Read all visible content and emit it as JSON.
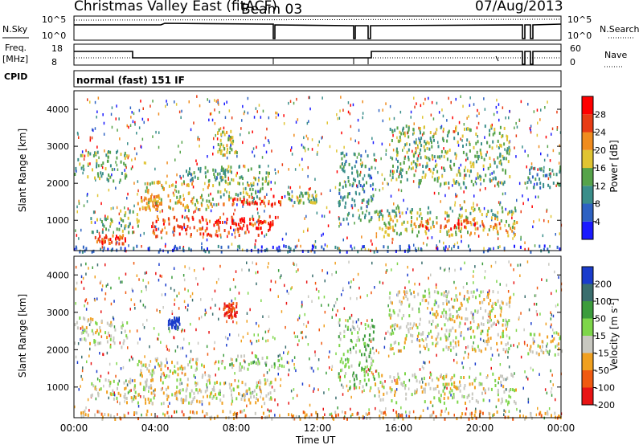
{
  "header": {
    "title": "Christmas Valley East (fitACF)",
    "beam": "Beam 03",
    "date": "07/Aug/2013"
  },
  "panels": {
    "nsky": {
      "left_label": "N.Sky",
      "right_label": "N.Search",
      "left_ticks": [
        "10^5",
        "10^0"
      ],
      "right_ticks": [
        "10^5",
        "10^0"
      ]
    },
    "freq": {
      "left_label_1": "Freq.",
      "left_label_2": "[MHz]",
      "right_label": "Nave",
      "left_ticks": [
        "18",
        "8"
      ],
      "right_ticks": [
        "60",
        "0"
      ]
    },
    "cpid": {
      "label": "CPID",
      "text": "normal (fast) 151 IF"
    }
  },
  "chart_data": [
    {
      "type": "heatmap",
      "name": "power",
      "ylabel": "Slant Range [km]",
      "xlabel": "Time UT",
      "x_unit": "hours UT",
      "xlim": [
        0,
        24
      ],
      "ylim": [
        180,
        4500
      ],
      "yticks": [
        1000,
        2000,
        3000,
        4000
      ],
      "colorbar": {
        "label": "Power [dB]",
        "ticks": [
          "4",
          "8",
          "12",
          "16",
          "20",
          "24",
          "28"
        ],
        "colors": [
          "#1a1aff",
          "#2e62c2",
          "#3a8e8a",
          "#56a34a",
          "#e0c432",
          "#f08c1e",
          "#e83c14",
          "#ff0000"
        ]
      },
      "bands": [
        {
          "t0": 0.0,
          "t1": 2.6,
          "r0": 2100,
          "r1": 2900,
          "level": 3
        },
        {
          "t0": 3.1,
          "t1": 4.3,
          "r0": 1300,
          "r1": 1700,
          "level": 5
        },
        {
          "t0": 3.5,
          "t1": 7.0,
          "r0": 1300,
          "r1": 2100,
          "level": 4
        },
        {
          "t0": 5.5,
          "t1": 7.5,
          "r0": 2100,
          "r1": 2500,
          "level": 2
        },
        {
          "t0": 7.0,
          "t1": 9.6,
          "r0": 1500,
          "r1": 2500,
          "level": 3
        },
        {
          "t0": 7.2,
          "t1": 10.3,
          "r0": 1450,
          "r1": 1700,
          "level": 6
        },
        {
          "t0": 7.0,
          "t1": 8.0,
          "r0": 2800,
          "r1": 3500,
          "level": 4
        },
        {
          "t0": 0.8,
          "t1": 3.2,
          "r0": 700,
          "r1": 1300,
          "level": 3
        },
        {
          "t0": 1.0,
          "t1": 2.5,
          "r0": 400,
          "r1": 650,
          "level": 6
        },
        {
          "t0": 3.8,
          "t1": 9.9,
          "r0": 600,
          "r1": 1150,
          "level": 6
        },
        {
          "t0": 6.2,
          "t1": 9.8,
          "r0": 800,
          "r1": 1100,
          "level": 7
        },
        {
          "t0": 10.5,
          "t1": 12.0,
          "r0": 1500,
          "r1": 1800,
          "level": 3
        },
        {
          "t0": 13.0,
          "t1": 14.8,
          "r0": 1000,
          "r1": 2900,
          "level": 2
        },
        {
          "t0": 14.8,
          "t1": 21.8,
          "r0": 1100,
          "r1": 1400,
          "level": 3
        },
        {
          "t0": 15.0,
          "t1": 21.8,
          "r0": 600,
          "r1": 1100,
          "level": 4
        },
        {
          "t0": 17.0,
          "t1": 21.0,
          "r0": 800,
          "r1": 1050,
          "level": 6
        },
        {
          "t0": 15.5,
          "t1": 21.5,
          "r0": 2000,
          "r1": 3600,
          "level": 3
        },
        {
          "t0": 22.3,
          "t1": 24.0,
          "r0": 1900,
          "r1": 2500,
          "level": 2
        },
        {
          "t0": 0.0,
          "t1": 24.0,
          "r0": 180,
          "r1": 350,
          "level": 1
        }
      ]
    },
    {
      "type": "heatmap",
      "name": "velocity",
      "ylabel": "Slant Range [km]",
      "xlabel": "Time UT",
      "x_unit": "hours UT",
      "xlim": [
        0,
        24
      ],
      "ylim": [
        180,
        4500
      ],
      "yticks": [
        1000,
        2000,
        3000,
        4000
      ],
      "xticks": [
        "00:00",
        "04:00",
        "08:00",
        "12:00",
        "16:00",
        "20:00",
        "00:00"
      ],
      "colorbar": {
        "label": "Velocity [m s^-1]",
        "ticks": [
          "200",
          "100",
          "50",
          "15",
          "-15",
          "-50",
          "-100",
          "-200"
        ],
        "colors": [
          "#1a3ccc",
          "#3a6e6e",
          "#3c9c3c",
          "#7ed64a",
          "#c8c8c0",
          "#f0a020",
          "#f05a10",
          "#e81414"
        ]
      },
      "bands": [
        {
          "t0": 0.0,
          "t1": 2.6,
          "r0": 2100,
          "r1": 2900,
          "level": 4
        },
        {
          "t0": 3.1,
          "t1": 7.0,
          "r0": 1300,
          "r1": 1800,
          "level": 4
        },
        {
          "t0": 7.0,
          "t1": 10.3,
          "r0": 1500,
          "r1": 1900,
          "level": 3
        },
        {
          "t0": 0.8,
          "t1": 9.9,
          "r0": 600,
          "r1": 1250,
          "level": 4
        },
        {
          "t0": 5.0,
          "t1": 9.0,
          "r0": 700,
          "r1": 1000,
          "level": 4
        },
        {
          "t0": 7.3,
          "t1": 8.0,
          "r0": 2900,
          "r1": 3300,
          "level": 7
        },
        {
          "t0": 4.6,
          "t1": 5.2,
          "r0": 2600,
          "r1": 2900,
          "level": 0
        },
        {
          "t0": 13.0,
          "t1": 14.8,
          "r0": 1000,
          "r1": 2900,
          "level": 3
        },
        {
          "t0": 14.8,
          "t1": 21.8,
          "r0": 600,
          "r1": 1400,
          "level": 4
        },
        {
          "t0": 15.5,
          "t1": 21.5,
          "r0": 2000,
          "r1": 3600,
          "level": 4
        },
        {
          "t0": 22.3,
          "t1": 24.0,
          "r0": 1900,
          "r1": 2500,
          "level": 4
        },
        {
          "t0": 0.0,
          "t1": 24.0,
          "r0": 180,
          "r1": 400,
          "level": 5
        }
      ]
    }
  ]
}
